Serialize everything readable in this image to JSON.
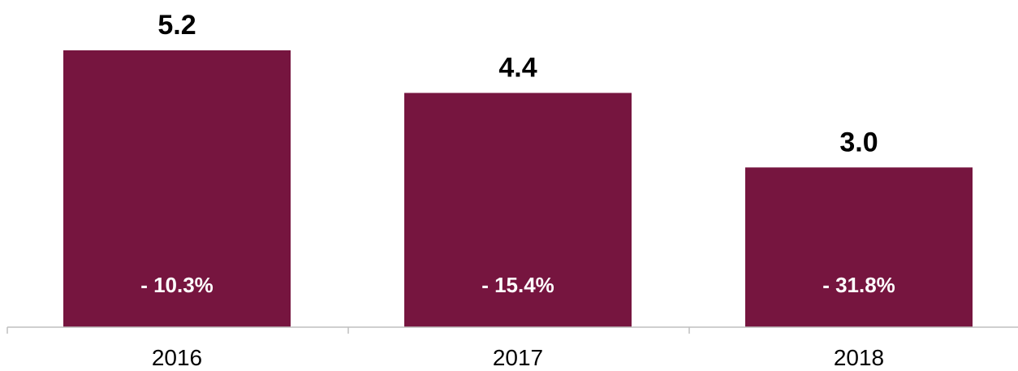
{
  "chart_data": {
    "type": "bar",
    "title": "",
    "xlabel": "",
    "ylabel": "",
    "categories": [
      "2016",
      "2017",
      "2018"
    ],
    "values": [
      5.2,
      4.4,
      3.0
    ],
    "value_labels": [
      "5.2",
      "4.4",
      "3.0"
    ],
    "change_labels": [
      "- 10.3%",
      "- 15.4%",
      "- 31.8%"
    ],
    "ylim": [
      0,
      5.2
    ],
    "grid": false,
    "legend": "none",
    "bar_color": "#76153f",
    "axis_color": "#bfbfbf"
  }
}
